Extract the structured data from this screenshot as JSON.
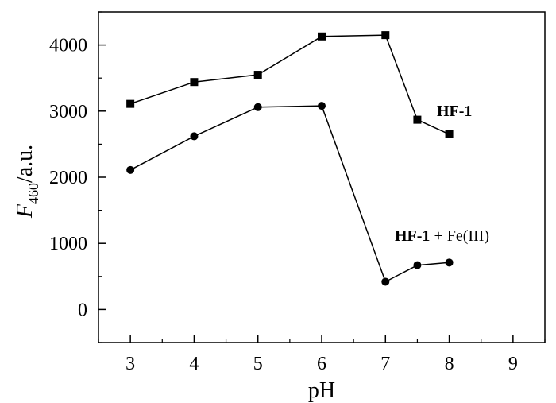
{
  "chart_data": {
    "type": "line",
    "title": "",
    "xlabel": "pH",
    "ylabel": {
      "main": "F",
      "subscript": "460",
      "suffix": "/a.u."
    },
    "xlim": [
      2.5,
      9.5
    ],
    "ylim": [
      -500,
      4500
    ],
    "x_ticks": [
      "3",
      "4",
      "5",
      "6",
      "7",
      "8",
      "9"
    ],
    "y_ticks": [
      "0",
      "1000",
      "2000",
      "3000",
      "4000"
    ],
    "grid": false,
    "series": [
      {
        "label_bold": "HF-1",
        "label_rest": "",
        "marker": "square",
        "x": [
          3,
          4,
          5,
          6,
          7,
          7.5,
          8
        ],
        "y": [
          3110,
          3440,
          3550,
          4130,
          4150,
          2870,
          2650
        ]
      },
      {
        "label_bold": "HF-1",
        "label_rest": " + Fe(III)",
        "marker": "circle",
        "x": [
          3,
          4,
          5,
          6,
          7,
          7.5,
          8
        ],
        "y": [
          2110,
          2620,
          3060,
          3080,
          420,
          670,
          710
        ]
      }
    ],
    "colors": {
      "line": "#000000",
      "marker": "#000000",
      "axis": "#000000"
    }
  }
}
